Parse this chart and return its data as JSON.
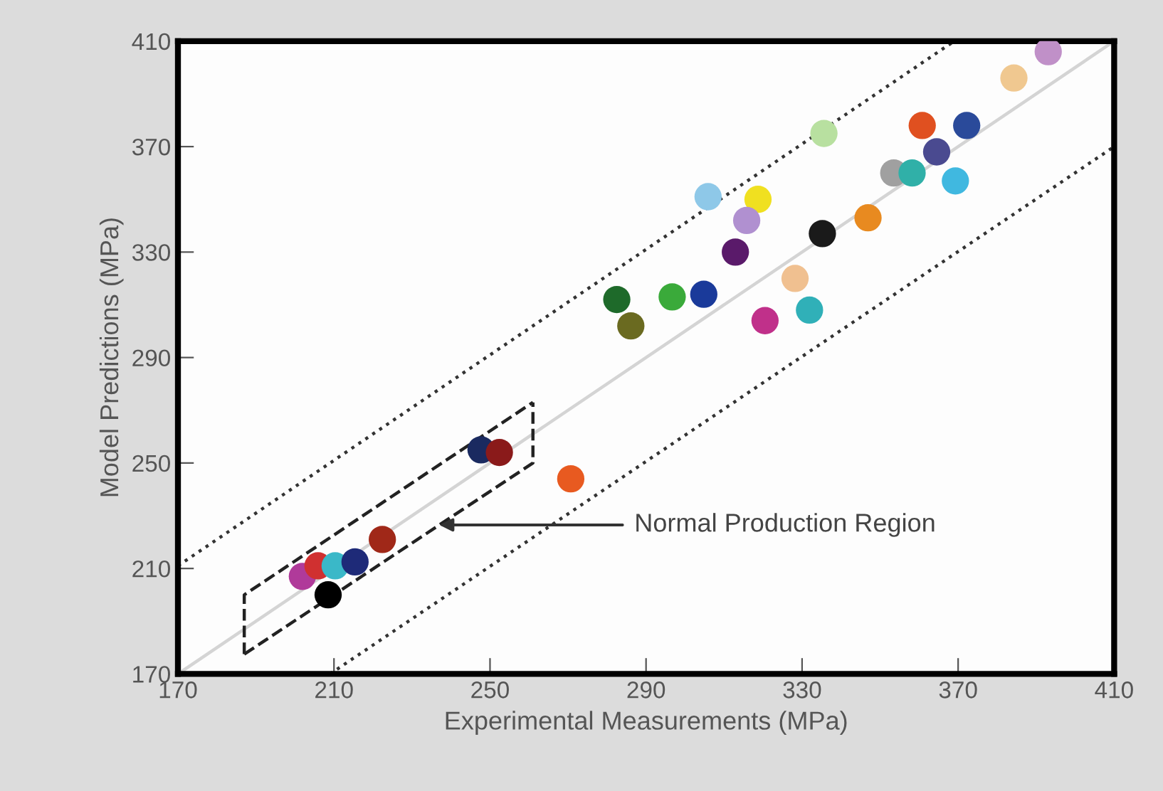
{
  "chart_data": {
    "type": "scatter",
    "xlabel": "Experimental Measurements (MPa)",
    "ylabel": "Model Predictions (MPa)",
    "xlim": [
      170,
      410
    ],
    "ylim": [
      170,
      410
    ],
    "xticks": [
      170,
      210,
      250,
      290,
      330,
      370,
      410
    ],
    "yticks": [
      170,
      210,
      250,
      290,
      330,
      370,
      410
    ],
    "grid": false,
    "legend": false,
    "marker": "circle",
    "annotations": [
      {
        "text": "Normal Production Region",
        "x": 237,
        "y": 226.5
      }
    ],
    "series": [
      {
        "type": "line",
        "color": "#d4d4d4",
        "line_style": "solid",
        "marker": "none",
        "x": [
          170,
          410
        ],
        "values": [
          170,
          410
        ]
      },
      {
        "type": "line",
        "color": "#333333",
        "line_style": "dotted",
        "marker": "none",
        "x": [
          170,
          369
        ],
        "values": [
          211,
          410
        ]
      },
      {
        "type": "line",
        "color": "#333333",
        "line_style": "dotted",
        "marker": "none",
        "x": [
          209,
          410
        ],
        "values": [
          170,
          370
        ]
      },
      {
        "type": "line",
        "color": "#222222",
        "line_style": "dashed",
        "marker": "none",
        "x": [
          187,
          187,
          261
        ],
        "values": [
          177.5,
          200,
          273
        ]
      },
      {
        "type": "line",
        "color": "#222222",
        "line_style": "dashed",
        "marker": "none",
        "x": [
          187,
          261,
          261
        ],
        "values": [
          177.5,
          250,
          273
        ]
      },
      {
        "x": [
          208.5,
          201.9,
          205.9,
          210.3,
          215.4,
          222.4,
          247.7,
          252.4,
          270.7,
          282.5,
          286.1,
          296.7,
          304.8,
          312.9,
          305.9,
          318.7,
          315.8,
          320.5,
          328.2,
          331.9,
          335.2,
          346.9,
          335.6,
          353.5,
          358.2,
          360.8,
          364.5,
          372.2,
          369.3,
          384.3,
          393.1
        ],
        "values": [
          200,
          207,
          211,
          211,
          212.5,
          221,
          255,
          254,
          244,
          312,
          302,
          313,
          314,
          330,
          351,
          350,
          342,
          304,
          320,
          308,
          337,
          343,
          375,
          360,
          360,
          378,
          368,
          378,
          357,
          396,
          406
        ],
        "colors": [
          "#000000",
          "#b03a9a",
          "#d03030",
          "#3ab8c8",
          "#1e2a78",
          "#a02818",
          "#1a2a60",
          "#8a1a1a",
          "#e85a20",
          "#1e6a2a",
          "#6a6a20",
          "#3aaa3a",
          "#1a3a9a",
          "#5a1a6a",
          "#8ec8e8",
          "#f0e020",
          "#b090d0",
          "#c0308a",
          "#f0c090",
          "#30b0b8",
          "#1a1a1a",
          "#e88a20",
          "#b8e0a0",
          "#a0a0a0",
          "#30b0a8",
          "#e05020",
          "#4a4a90",
          "#2a4a9a",
          "#40b8e0",
          "#f0c890",
          "#c090c8"
        ]
      }
    ]
  }
}
